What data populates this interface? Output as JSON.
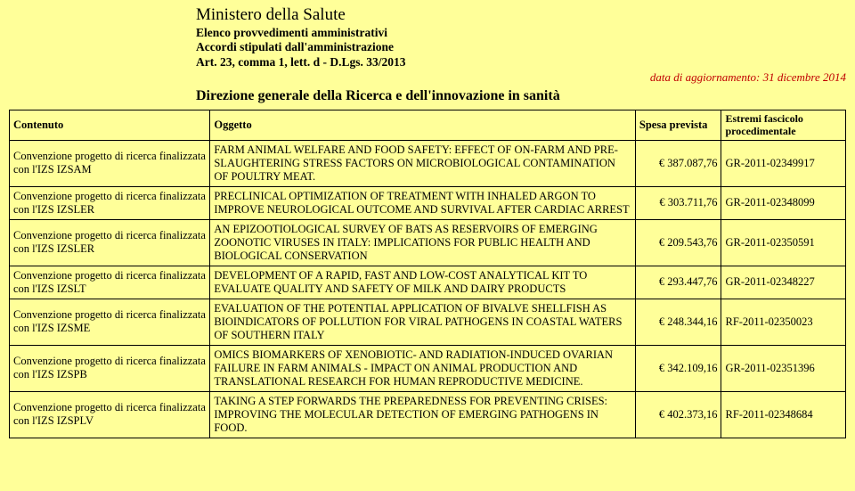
{
  "header": {
    "ministry": "Ministero della Salute",
    "line1": "Elenco provvedimenti amministrativi",
    "line2": "Accordi stipulati dall'amministrazione",
    "line3": "Art. 23, comma 1, lett. d - D.Lgs. 33/2013",
    "update": "data di aggiornamento: 31 dicembre 2014",
    "direzione": "Direzione generale della Ricerca e dell'innovazione in sanità"
  },
  "columns": {
    "contenuto": "Contenuto",
    "oggetto": "Oggetto",
    "spesa": "Spesa prevista",
    "estremi": "Estremi fascicolo procedimentale"
  },
  "rows": [
    {
      "contenuto": "Convenzione progetto di ricerca finalizzata con l'IZS  IZSAM",
      "oggetto": "FARM ANIMAL WELFARE AND FOOD SAFETY: EFFECT OF ON-FARM AND PRE-SLAUGHTERING STRESS FACTORS ON MICROBIOLOGICAL CONTAMINATION OF POULTRY MEAT.",
      "spesa": "€ 387.087,76",
      "estremi": "GR-2011-02349917"
    },
    {
      "contenuto": "Convenzione progetto di ricerca finalizzata con l'IZS  IZSLER",
      "oggetto": "PRECLINICAL OPTIMIZATION OF TREATMENT WITH INHALED ARGON TO IMPROVE NEUROLOGICAL OUTCOME AND SURVIVAL AFTER CARDIAC ARREST",
      "spesa": "€ 303.711,76",
      "estremi": "GR-2011-02348099"
    },
    {
      "contenuto": "Convenzione progetto di ricerca finalizzata con l'IZS  IZSLER",
      "oggetto": "AN EPIZOOTIOLOGICAL SURVEY OF BATS AS RESERVOIRS OF EMERGING ZOONOTIC VIRUSES IN ITALY: IMPLICATIONS FOR PUBLIC HEALTH AND BIOLOGICAL CONSERVATION",
      "spesa": "€ 209.543,76",
      "estremi": "GR-2011-02350591"
    },
    {
      "contenuto": "Convenzione progetto di ricerca finalizzata con l'IZS  IZSLT",
      "oggetto": "DEVELOPMENT OF A RAPID, FAST AND LOW-COST ANALYTICAL KIT TO EVALUATE QUALITY AND SAFETY OF MILK AND DAIRY PRODUCTS",
      "spesa": "€ 293.447,76",
      "estremi": "GR-2011-02348227"
    },
    {
      "contenuto": "Convenzione progetto di ricerca finalizzata con l'IZS  IZSME",
      "oggetto": "EVALUATION OF THE POTENTIAL APPLICATION OF BIVALVE SHELLFISH AS BIOINDICATORS OF POLLUTION FOR VIRAL PATHOGENS IN COASTAL WATERS OF SOUTHERN ITALY",
      "spesa": "€ 248.344,16",
      "estremi": "RF-2011-02350023"
    },
    {
      "contenuto": "Convenzione progetto di ricerca finalizzata con l'IZS  IZSPB",
      "oggetto": "OMICS BIOMARKERS OF XENOBIOTIC- AND RADIATION-INDUCED OVARIAN FAILURE IN FARM ANIMALS - IMPACT ON ANIMAL PRODUCTION AND TRANSLATIONAL RESEARCH FOR HUMAN REPRODUCTIVE MEDICINE.",
      "spesa": "€ 342.109,16",
      "estremi": "GR-2011-02351396"
    },
    {
      "contenuto": "Convenzione progetto di ricerca finalizzata con l'IZS  IZSPLV",
      "oggetto": "TAKING A STEP FORWARDS THE PREPAREDNESS FOR PREVENTING CRISES: IMPROVING THE MOLECULAR DETECTION OF EMERGING PATHOGENS IN FOOD.",
      "spesa": "€ 402.373,16",
      "estremi": "RF-2011-02348684"
    }
  ],
  "colors": {
    "background": "#ffff99",
    "update_text": "#c00000",
    "border": "#000000"
  }
}
